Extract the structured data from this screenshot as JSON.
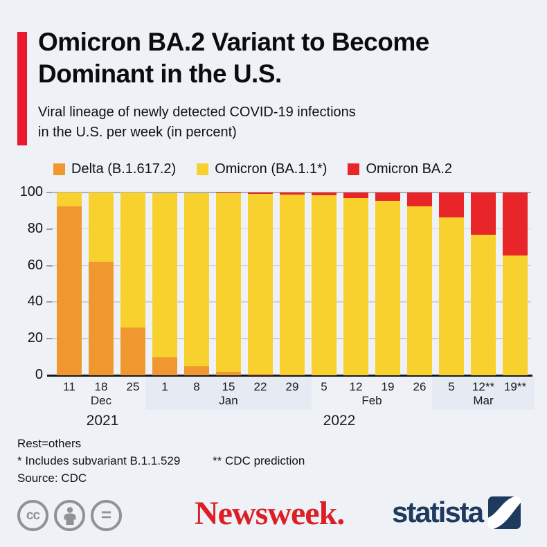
{
  "page": {
    "background": "#eef1f6"
  },
  "header": {
    "accent_color": "#e8192d",
    "title_line1": "Omicron BA.2 Variant to Become",
    "title_line2": "Dominant in the U.S.",
    "subtitle_line1": "Viral lineage of newly detected COVID-19 infections",
    "subtitle_line2": "in the U.S. per week (in percent)"
  },
  "legend": [
    {
      "label": "Delta (B.1.617.2)",
      "color": "#f0982f"
    },
    {
      "label": "Omicron (BA.1.1*)",
      "color": "#f8d12e"
    },
    {
      "label": "Omicron BA.2",
      "color": "#e8262a"
    }
  ],
  "chart_data": {
    "type": "bar",
    "stacked": true,
    "title": "Viral lineage of newly detected COVID-19 infections in the U.S. per week (in percent)",
    "xlabel": "",
    "ylabel": "",
    "ylim": [
      0,
      100
    ],
    "yticks": [
      0,
      20,
      40,
      60,
      80,
      100
    ],
    "grid": true,
    "legend_position": "top",
    "categories": [
      "11",
      "18",
      "25",
      "1",
      "8",
      "15",
      "22",
      "29",
      "5",
      "12",
      "19",
      "26",
      "5",
      "12**",
      "19**"
    ],
    "month_groups": [
      {
        "label": "Dec",
        "span": [
          0,
          2
        ],
        "band": false
      },
      {
        "label": "Jan",
        "span": [
          3,
          7
        ],
        "band": true
      },
      {
        "label": "Feb",
        "span": [
          8,
          11
        ],
        "band": false
      },
      {
        "label": "Mar",
        "span": [
          12,
          14
        ],
        "band": true
      }
    ],
    "year_labels": [
      "2021",
      "2022"
    ],
    "series": [
      {
        "name": "Delta (B.1.617.2)",
        "color": "#f0982f",
        "values": [
          92.5,
          62,
          26,
          10,
          4.8,
          2,
          0.8,
          0.4,
          0,
          0,
          0,
          0,
          0,
          0,
          0
        ]
      },
      {
        "name": "Omicron (BA.1.1*)",
        "color": "#f8d12e",
        "values": [
          7.5,
          38,
          74,
          89.5,
          95,
          97.8,
          98.6,
          98.6,
          98.5,
          97,
          95.3,
          92.5,
          86.5,
          77,
          65.5
        ]
      },
      {
        "name": "Omicron BA.2",
        "color": "#e8262a",
        "values": [
          0,
          0,
          0,
          0,
          0,
          0.2,
          0.6,
          1.0,
          1.5,
          3,
          4.7,
          7.5,
          13.5,
          23,
          34.5
        ]
      }
    ]
  },
  "footnotes": {
    "rest_note": "Rest=others",
    "subvariant_note": "* Includes subvariant B.1.1.529",
    "prediction_note": "** CDC prediction",
    "source": "Source: CDC"
  },
  "branding": {
    "cc_label": "cc",
    "nd_label": "=",
    "newsweek_wordmark": "Newsweek.",
    "newsweek_color": "#dc1f26",
    "statista_wordmark": "statista",
    "statista_color": "#1e3a5c"
  }
}
